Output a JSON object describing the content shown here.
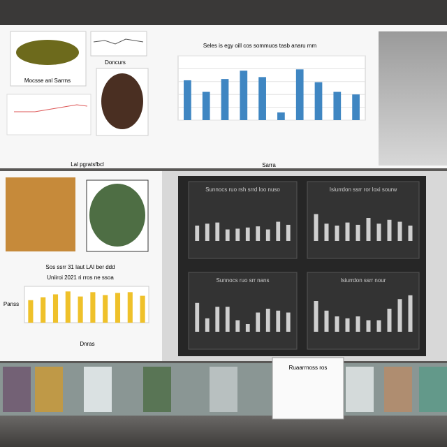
{
  "top_chart": {
    "title": "Seles is egy oill cos sommuos tasb anaru mm",
    "ylim": [
      0,
      100
    ],
    "color": "#3f86c2",
    "values": [
      62,
      44,
      64,
      77,
      67,
      12,
      79,
      59,
      44,
      40
    ],
    "x_label": "Sarra"
  },
  "caption": "Lal pgratsfbcl",
  "thumb_labels": [
    "Mocsse anl Sarrns",
    "Doncurs"
  ],
  "yellow_chart": {
    "title": [
      "Sos ssrr 31 laut LAI ber ddd",
      "Uniiroi 2021 ri rros ne ssoa"
    ],
    "ylim": [
      0,
      100
    ],
    "color": "#efc12a",
    "values": [
      62,
      70,
      78,
      86,
      72,
      84,
      76,
      82,
      84,
      74
    ],
    "y_label": "Panss",
    "x_label": "Dnras"
  },
  "dark_charts": [
    {
      "title": "Sunnocs ruo rsh srrd loo nuso",
      "values": [
        40,
        45,
        48,
        30,
        32,
        35,
        38,
        30,
        50,
        42
      ]
    },
    {
      "title": "Isiurrdon ssrr ror loxi sourw",
      "values": [
        70,
        45,
        40,
        48,
        42,
        60,
        45,
        55,
        50,
        40
      ]
    },
    {
      "title": "Sunnocs ruo srr nans",
      "values": [
        75,
        35,
        65,
        65,
        30,
        20,
        50,
        60,
        55,
        50
      ]
    },
    {
      "title": "Isiurrdon ssrr nour",
      "values": [
        80,
        55,
        40,
        35,
        40,
        30,
        30,
        60,
        85,
        95
      ]
    }
  ],
  "card_title": "Ruaarrnoss ros"
}
